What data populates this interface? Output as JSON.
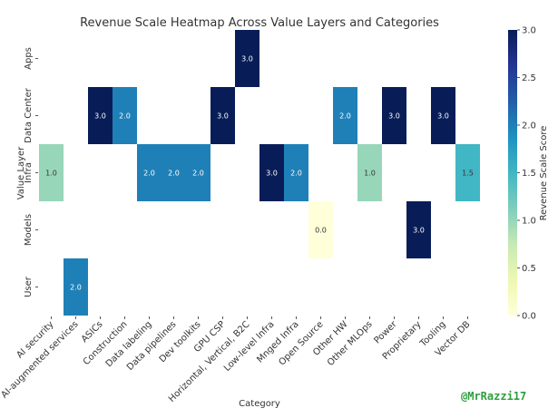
{
  "chart_data": {
    "type": "heatmap",
    "title": "Revenue Scale Heatmap Across Value Layers and Categories",
    "xlabel": "Category",
    "ylabel": "Value Layer",
    "x_categories": [
      "AI security",
      "AI-augmented services",
      "ASICs",
      "Construction",
      "Data labeling",
      "Data pipelines",
      "Dev toolkits",
      "GPU CSP",
      "Horizontal, Vertical, B2C",
      "Low-level Infra",
      "Mnged Infra",
      "Open Source",
      "Other HW",
      "Other MLOps",
      "Power",
      "Proprietary",
      "Tooling",
      "Vector DB"
    ],
    "y_categories": [
      "Apps",
      "Data Center",
      "Infra",
      "Models",
      "User"
    ],
    "cells": [
      {
        "x": "Horizontal, Vertical, B2C",
        "y": "Apps",
        "value": 3.0,
        "label": "3.0"
      },
      {
        "x": "ASICs",
        "y": "Data Center",
        "value": 3.0,
        "label": "3.0"
      },
      {
        "x": "Construction",
        "y": "Data Center",
        "value": 2.0,
        "label": "2.0"
      },
      {
        "x": "GPU CSP",
        "y": "Data Center",
        "value": 3.0,
        "label": "3.0"
      },
      {
        "x": "Other HW",
        "y": "Data Center",
        "value": 2.0,
        "label": "2.0"
      },
      {
        "x": "Power",
        "y": "Data Center",
        "value": 3.0,
        "label": "3.0"
      },
      {
        "x": "Tooling",
        "y": "Data Center",
        "value": 3.0,
        "label": "3.0"
      },
      {
        "x": "AI security",
        "y": "Infra",
        "value": 1.0,
        "label": "1.0"
      },
      {
        "x": "Data labeling",
        "y": "Infra",
        "value": 2.0,
        "label": "2.0"
      },
      {
        "x": "Data pipelines",
        "y": "Infra",
        "value": 2.0,
        "label": "2.0"
      },
      {
        "x": "Dev toolkits",
        "y": "Infra",
        "value": 2.0,
        "label": "2.0"
      },
      {
        "x": "Low-level Infra",
        "y": "Infra",
        "value": 3.0,
        "label": "3.0"
      },
      {
        "x": "Mnged Infra",
        "y": "Infra",
        "value": 2.0,
        "label": "2.0"
      },
      {
        "x": "Other MLOps",
        "y": "Infra",
        "value": 1.0,
        "label": "1.0"
      },
      {
        "x": "Vector DB",
        "y": "Infra",
        "value": 1.5,
        "label": "1.5"
      },
      {
        "x": "Open Source",
        "y": "Models",
        "value": 0.0,
        "label": "0.0"
      },
      {
        "x": "Proprietary",
        "y": "Models",
        "value": 3.0,
        "label": "3.0"
      },
      {
        "x": "AI-augmented services",
        "y": "User",
        "value": 2.0,
        "label": "2.0"
      }
    ],
    "colorbar": {
      "label": "Revenue Scale Score",
      "range": [
        0,
        3
      ],
      "ticks": [
        "0.0",
        "0.5",
        "1.0",
        "1.5",
        "2.0",
        "2.5",
        "3.0"
      ],
      "colormap": "YlGnBu"
    },
    "grid": false
  },
  "watermark": "@MrRazzi17"
}
